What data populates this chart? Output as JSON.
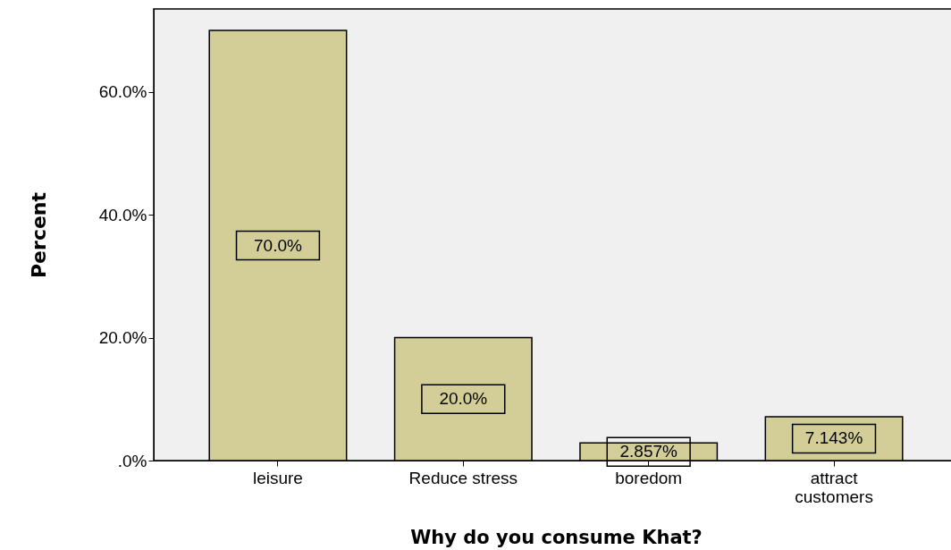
{
  "chart_data": {
    "type": "bar",
    "xlabel": "Why do you consume Khat?",
    "ylabel": "Percent",
    "categories": [
      "leisure",
      "Reduce stress",
      "boredom",
      "attract customers"
    ],
    "values": [
      70.0,
      20.0,
      2.857,
      7.143
    ],
    "value_labels": [
      "70.0%",
      "20.0%",
      "2.857%",
      "7.143%"
    ],
    "color": "#d3ce97",
    "ylim": [
      0,
      73.5
    ],
    "yticks": [
      {
        "value": 0,
        "label": ".0%"
      },
      {
        "value": 20,
        "label": "20.0%"
      },
      {
        "value": 40,
        "label": "40.0%"
      },
      {
        "value": 60,
        "label": "60.0%"
      }
    ],
    "grid": false
  }
}
